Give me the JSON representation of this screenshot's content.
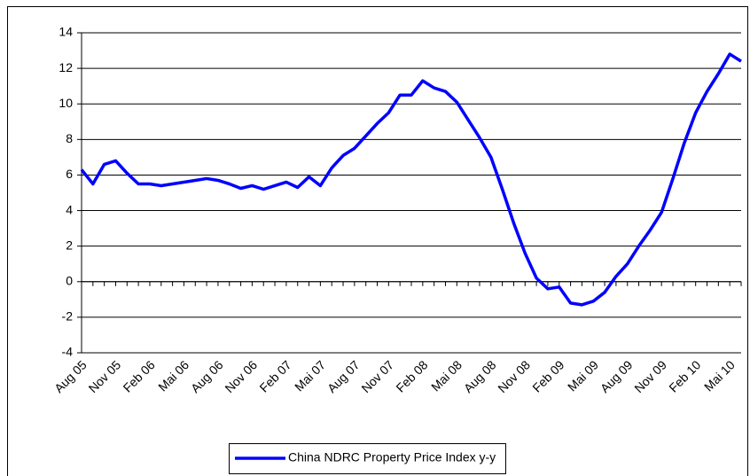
{
  "chart_data": {
    "type": "line",
    "categories": [
      "Aug 05",
      null,
      null,
      "Nov 05",
      null,
      null,
      "Feb 06",
      null,
      null,
      "Mai 06",
      null,
      null,
      "Aug 06",
      null,
      null,
      "Nov 06",
      null,
      null,
      "Feb 07",
      null,
      null,
      "Mai 07",
      null,
      null,
      "Aug 07",
      null,
      null,
      "Nov 07",
      null,
      null,
      "Feb 08",
      null,
      null,
      "Mai 08",
      null,
      null,
      "Aug 08",
      null,
      null,
      "Nov 08",
      null,
      null,
      "Feb 09",
      null,
      null,
      "Mai 09",
      null,
      null,
      "Aug 09",
      null,
      null,
      "Nov 09",
      null,
      null,
      "Feb 10",
      null,
      null,
      "Mai 10",
      null
    ],
    "series": [
      {
        "name": "China NDRC Property Price Index y-y",
        "color": "#0000ff",
        "values": [
          6.3,
          5.5,
          6.6,
          6.8,
          6.1,
          5.5,
          5.5,
          5.4,
          5.5,
          5.6,
          5.7,
          5.8,
          5.7,
          5.5,
          5.25,
          5.4,
          5.2,
          5.4,
          5.6,
          5.3,
          5.9,
          5.4,
          6.4,
          7.1,
          7.5,
          8.2,
          8.9,
          9.5,
          10.5,
          10.5,
          11.3,
          10.9,
          10.7,
          10.1,
          9.1,
          8.1,
          7.0,
          5.2,
          3.3,
          1.6,
          0.2,
          -0.4,
          -0.3,
          -1.2,
          -1.3,
          -1.1,
          -0.6,
          0.3,
          1.0,
          2.0,
          2.9,
          3.9,
          5.8,
          7.8,
          9.5,
          10.7,
          11.7,
          12.8,
          12.4
        ]
      }
    ],
    "ylim": [
      -4,
      14
    ],
    "yticks": [
      -4,
      -2,
      0,
      2,
      4,
      6,
      8,
      10,
      12,
      14
    ],
    "grid": true,
    "legend": "bottom"
  }
}
